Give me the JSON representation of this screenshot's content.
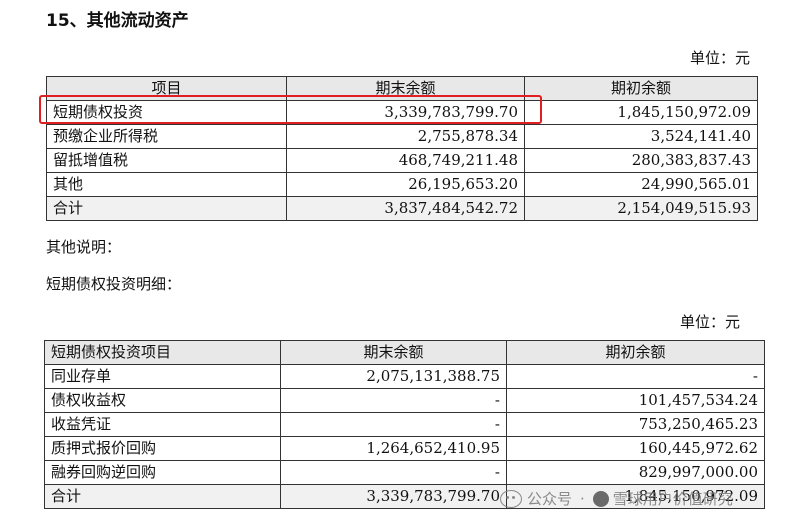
{
  "section_title": "15、其他流动资产",
  "unit_label": "单位：元",
  "table1": {
    "headers": [
      "项目",
      "期末余额",
      "期初余额"
    ],
    "rows": [
      [
        "短期债权投资",
        "3,339,783,799.70",
        "1,845,150,972.09"
      ],
      [
        "预缴企业所得税",
        "2,755,878.34",
        "3,524,141.40"
      ],
      [
        "留抵增值税",
        "468,749,211.48",
        "280,383,837.43"
      ],
      [
        "其他",
        "26,195,653.20",
        "24,990,565.01"
      ]
    ],
    "total": [
      "合计",
      "3,837,484,542.72",
      "2,154,049,515.93"
    ]
  },
  "other_notes_label": "其他说明：",
  "detail_label": "短期债权投资明细：",
  "table2": {
    "headers": [
      "短期债权投资项目",
      "期末余额",
      "期初余额"
    ],
    "rows": [
      [
        "同业存单",
        "2,075,131,388.75",
        "-"
      ],
      [
        "债权收益权",
        "-",
        "101,457,534.24"
      ],
      [
        "收益凭证",
        "-",
        "753,250,465.23"
      ],
      [
        "质押式报价回购",
        "1,264,652,410.95",
        "160,445,972.62"
      ],
      [
        "融券回购逆回购",
        "-",
        "829,997,000.00"
      ]
    ],
    "total": [
      "合计",
      "3,339,783,799.70",
      "1,845,150,972.09"
    ]
  },
  "watermark": {
    "prefix": "公众号",
    "name": "雪球用户价值研究"
  },
  "highlight_color": "#e02020"
}
